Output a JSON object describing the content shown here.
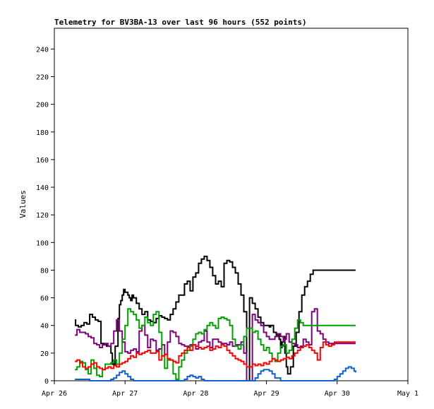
{
  "chart_data": {
    "type": "line",
    "title": "Telemetry for BV3BA-13 over last 96 hours (552 points)",
    "xlabel": "",
    "ylabel": "Values",
    "ylim": [
      0,
      255
    ],
    "xlim": [
      "Apr 26",
      "May 1"
    ],
    "x_ticks": [
      "Apr 26",
      "Apr 27",
      "Apr 28",
      "Apr 29",
      "Apr 30",
      "May 1"
    ],
    "y_ticks": [
      0,
      20,
      40,
      60,
      80,
      100,
      120,
      140,
      160,
      180,
      200,
      220,
      240
    ],
    "grid": false,
    "legend": "none",
    "x_units": "days since Apr 26 00:00",
    "series": [
      {
        "color": "#000000",
        "x": [
          0.29,
          0.3,
          0.34,
          0.38,
          0.42,
          0.46,
          0.5,
          0.54,
          0.58,
          0.62,
          0.66,
          0.7,
          0.74,
          0.78,
          0.8,
          0.82,
          0.86,
          0.9,
          0.92,
          0.94,
          0.96,
          0.98,
          1.0,
          1.04,
          1.06,
          1.08,
          1.1,
          1.12,
          1.16,
          1.2,
          1.24,
          1.28,
          1.32,
          1.36,
          1.4,
          1.44,
          1.48,
          1.52,
          1.56,
          1.6,
          1.64,
          1.68,
          1.72,
          1.76,
          1.8,
          1.84,
          1.88,
          1.92,
          1.96,
          2.0,
          2.04,
          2.08,
          2.12,
          2.16,
          2.2,
          2.24,
          2.28,
          2.32,
          2.36,
          2.4,
          2.44,
          2.48,
          2.52,
          2.56,
          2.6,
          2.64,
          2.68,
          2.72,
          2.76,
          2.8,
          2.84,
          2.88,
          2.92,
          2.96,
          3.0,
          3.04,
          3.06,
          3.1,
          3.14,
          3.18,
          3.2,
          3.22,
          3.24,
          3.26,
          3.28,
          3.3,
          3.34,
          3.38,
          3.42,
          3.46,
          3.5,
          3.54,
          3.58,
          3.62,
          3.66,
          3.7,
          3.74,
          3.78,
          3.82,
          3.86,
          3.9,
          3.94,
          3.96,
          3.98,
          4.0,
          4.02,
          4.04,
          4.06,
          4.08,
          4.1,
          4.12,
          4.14,
          4.16,
          4.18,
          4.2,
          4.22,
          4.24,
          4.26
        ],
        "values": [
          44,
          40,
          39,
          40,
          42,
          41,
          48,
          46,
          44,
          43,
          27,
          26,
          25,
          25,
          20,
          12,
          25,
          45,
          55,
          58,
          62,
          66,
          64,
          62,
          60,
          58,
          62,
          60,
          56,
          52,
          48,
          50,
          44,
          43,
          42,
          45,
          47,
          46,
          45,
          44,
          48,
          52,
          57,
          62,
          62,
          70,
          72,
          65,
          75,
          78,
          85,
          88,
          90,
          87,
          82,
          76,
          70,
          72,
          68,
          85,
          87,
          86,
          82,
          78,
          70,
          62,
          50,
          0,
          60,
          56,
          52,
          46,
          42,
          40,
          40,
          39,
          40,
          35,
          33,
          30,
          24,
          28,
          32,
          20,
          10,
          5,
          10,
          25,
          35,
          50,
          62,
          68,
          72,
          77,
          80,
          80,
          80,
          80,
          80,
          80,
          80,
          80,
          80,
          80,
          80,
          80,
          80,
          80,
          80,
          80,
          80,
          80,
          80,
          80,
          80,
          80,
          80,
          80
        ]
      },
      {
        "color": "#7f007f",
        "x": [
          0.29,
          0.32,
          0.36,
          0.4,
          0.44,
          0.48,
          0.52,
          0.56,
          0.6,
          0.64,
          0.68,
          0.72,
          0.76,
          0.8,
          0.84,
          0.88,
          0.92,
          0.96,
          1.0,
          1.04,
          1.08,
          1.12,
          1.16,
          1.2,
          1.24,
          1.28,
          1.32,
          1.36,
          1.4,
          1.44,
          1.48,
          1.52,
          1.56,
          1.6,
          1.64,
          1.68,
          1.72,
          1.76,
          1.8,
          1.84,
          1.88,
          1.92,
          1.96,
          2.0,
          2.04,
          2.08,
          2.12,
          2.16,
          2.2,
          2.24,
          2.28,
          2.32,
          2.36,
          2.4,
          2.44,
          2.48,
          2.52,
          2.56,
          2.6,
          2.64,
          2.68,
          2.72,
          2.76,
          2.8,
          2.84,
          2.88,
          2.92,
          2.96,
          3.0,
          3.04,
          3.08,
          3.12,
          3.16,
          3.2,
          3.24,
          3.26,
          3.28,
          3.32,
          3.36,
          3.4,
          3.44,
          3.48,
          3.52,
          3.56,
          3.6,
          3.64,
          3.68,
          3.72,
          3.76,
          3.8,
          3.84,
          3.88,
          3.92,
          3.96,
          4.0,
          4.04,
          4.08,
          4.12,
          4.16,
          4.2,
          4.24,
          4.26
        ],
        "values": [
          33,
          37,
          35,
          35,
          34,
          32,
          31,
          27,
          26,
          24,
          26,
          27,
          25,
          27,
          36,
          44,
          36,
          28,
          21,
          20,
          22,
          23,
          21,
          36,
          40,
          33,
          24,
          30,
          29,
          22,
          23,
          26,
          19,
          28,
          36,
          35,
          32,
          27,
          26,
          25,
          25,
          26,
          26,
          23,
          28,
          29,
          36,
          28,
          24,
          30,
          30,
          28,
          27,
          27,
          26,
          28,
          25,
          26,
          26,
          28,
          20,
          0,
          0,
          48,
          44,
          42,
          40,
          35,
          32,
          30,
          30,
          32,
          34,
          32,
          28,
          30,
          34,
          28,
          27,
          26,
          24,
          25,
          30,
          28,
          26,
          50,
          52,
          36,
          34,
          30,
          28,
          27,
          27,
          27,
          27,
          27,
          27,
          27,
          27,
          27,
          27,
          27
        ]
      },
      {
        "color": "#00a000",
        "x": [
          0.29,
          0.32,
          0.36,
          0.4,
          0.44,
          0.48,
          0.52,
          0.56,
          0.6,
          0.64,
          0.68,
          0.72,
          0.76,
          0.8,
          0.84,
          0.88,
          0.92,
          0.96,
          1.0,
          1.04,
          1.08,
          1.12,
          1.16,
          1.2,
          1.24,
          1.28,
          1.32,
          1.36,
          1.4,
          1.44,
          1.48,
          1.52,
          1.56,
          1.6,
          1.64,
          1.68,
          1.72,
          1.76,
          1.8,
          1.84,
          1.88,
          1.92,
          1.96,
          2.0,
          2.04,
          2.08,
          2.12,
          2.16,
          2.2,
          2.24,
          2.28,
          2.32,
          2.36,
          2.4,
          2.44,
          2.48,
          2.52,
          2.56,
          2.6,
          2.64,
          2.68,
          2.72,
          2.76,
          2.8,
          2.84,
          2.88,
          2.92,
          2.96,
          3.0,
          3.04,
          3.08,
          3.12,
          3.16,
          3.2,
          3.24,
          3.28,
          3.32,
          3.36,
          3.4,
          3.44,
          3.48,
          3.52,
          3.56,
          3.6,
          3.64,
          3.68,
          3.72,
          3.76,
          3.8,
          3.84,
          3.88,
          3.92,
          3.96,
          4.0,
          4.04,
          4.08,
          4.12,
          4.16,
          4.2,
          4.24,
          4.26
        ],
        "values": [
          8,
          10,
          14,
          13,
          8,
          5,
          15,
          9,
          4,
          3,
          8,
          12,
          12,
          13,
          15,
          12,
          20,
          30,
          40,
          52,
          50,
          48,
          44,
          38,
          40,
          46,
          42,
          40,
          48,
          50,
          35,
          18,
          9,
          15,
          15,
          5,
          1,
          10,
          15,
          20,
          22,
          25,
          30,
          34,
          35,
          34,
          37,
          40,
          42,
          40,
          38,
          45,
          46,
          45,
          44,
          40,
          30,
          25,
          23,
          26,
          32,
          38,
          38,
          35,
          36,
          30,
          26,
          22,
          24,
          20,
          16,
          14,
          20,
          25,
          26,
          20,
          22,
          30,
          38,
          44,
          42,
          40,
          40,
          40,
          40,
          40,
          40,
          40,
          40,
          40,
          40,
          40,
          40,
          40,
          40,
          40,
          40,
          40,
          40,
          40,
          40
        ]
      },
      {
        "color": "#ff0000",
        "x": [
          0.29,
          0.32,
          0.36,
          0.4,
          0.44,
          0.48,
          0.52,
          0.56,
          0.6,
          0.64,
          0.68,
          0.72,
          0.76,
          0.8,
          0.84,
          0.88,
          0.92,
          0.96,
          1.0,
          1.04,
          1.08,
          1.12,
          1.16,
          1.2,
          1.24,
          1.28,
          1.32,
          1.36,
          1.4,
          1.44,
          1.48,
          1.52,
          1.56,
          1.6,
          1.64,
          1.68,
          1.72,
          1.76,
          1.8,
          1.84,
          1.88,
          1.92,
          1.96,
          2.0,
          2.04,
          2.08,
          2.12,
          2.16,
          2.2,
          2.24,
          2.28,
          2.32,
          2.36,
          2.4,
          2.44,
          2.48,
          2.52,
          2.56,
          2.6,
          2.64,
          2.68,
          2.72,
          2.76,
          2.8,
          2.84,
          2.88,
          2.92,
          2.96,
          3.0,
          3.04,
          3.08,
          3.12,
          3.16,
          3.2,
          3.24,
          3.28,
          3.32,
          3.36,
          3.4,
          3.44,
          3.48,
          3.52,
          3.56,
          3.6,
          3.64,
          3.68,
          3.72,
          3.76,
          3.8,
          3.84,
          3.88,
          3.92,
          3.96,
          4.0,
          4.04,
          4.08,
          4.12,
          4.16,
          4.2,
          4.24,
          4.26
        ],
        "values": [
          14,
          15,
          13,
          10,
          9,
          10,
          12,
          13,
          10,
          9,
          8,
          9,
          10,
          9,
          11,
          10,
          12,
          13,
          14,
          16,
          18,
          17,
          20,
          19,
          20,
          21,
          22,
          20,
          20,
          21,
          15,
          18,
          19,
          16,
          15,
          14,
          13,
          18,
          20,
          22,
          24,
          22,
          26,
          25,
          24,
          23,
          24,
          25,
          22,
          23,
          25,
          24,
          26,
          25,
          22,
          20,
          18,
          16,
          15,
          14,
          12,
          10,
          10,
          12,
          11,
          12,
          11,
          13,
          12,
          14,
          16,
          15,
          14,
          15,
          16,
          17,
          16,
          18,
          20,
          22,
          24,
          25,
          26,
          24,
          22,
          20,
          15,
          24,
          28,
          26,
          25,
          26,
          28,
          28,
          28,
          28,
          28,
          28,
          28,
          28,
          28
        ]
      },
      {
        "color": "#1060d0",
        "x": [
          0.29,
          0.4,
          0.5,
          0.6,
          0.7,
          0.8,
          0.84,
          0.88,
          0.92,
          0.96,
          1.0,
          1.04,
          1.08,
          1.12,
          1.16,
          1.2,
          1.3,
          1.4,
          1.5,
          1.6,
          1.7,
          1.8,
          1.84,
          1.88,
          1.92,
          1.96,
          2.0,
          2.04,
          2.08,
          2.12,
          2.2,
          2.3,
          2.4,
          2.5,
          2.6,
          2.7,
          2.8,
          2.84,
          2.88,
          2.92,
          2.96,
          3.0,
          3.04,
          3.08,
          3.12,
          3.2,
          3.3,
          3.4,
          3.5,
          3.6,
          3.7,
          3.8,
          3.9,
          3.96,
          4.0,
          4.04,
          4.08,
          4.12,
          4.16,
          4.2,
          4.24,
          4.26
        ],
        "values": [
          1,
          1,
          0,
          0,
          0,
          1,
          2,
          4,
          6,
          7,
          5,
          3,
          1,
          0,
          0,
          0,
          0,
          0,
          0,
          0,
          0,
          0,
          1,
          3,
          4,
          3,
          2,
          3,
          1,
          0,
          0,
          0,
          0,
          0,
          0,
          0,
          0,
          2,
          5,
          7,
          8,
          8,
          7,
          5,
          2,
          0,
          0,
          0,
          0,
          0,
          0,
          0,
          0,
          1,
          3,
          5,
          7,
          9,
          10,
          9,
          7,
          6
        ]
      }
    ]
  }
}
